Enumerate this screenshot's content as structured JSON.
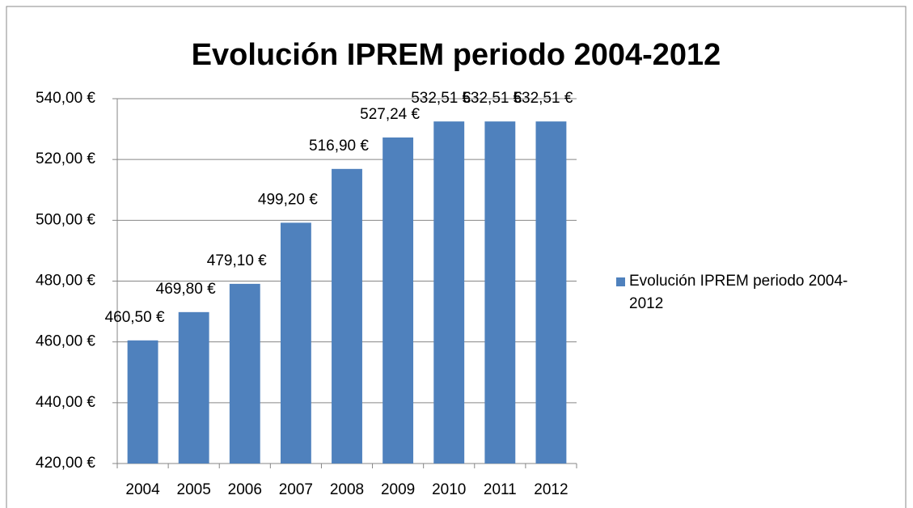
{
  "chart_data": {
    "type": "bar",
    "title": "Evolución IPREM periodo 2004-2012",
    "categories": [
      "2004",
      "2005",
      "2006",
      "2007",
      "2008",
      "2009",
      "2010",
      "2011",
      "2012"
    ],
    "series": [
      {
        "name": "Evolución IPREM periodo 2004-2012",
        "color": "#4f81bd",
        "values": [
          460.5,
          469.8,
          479.1,
          499.2,
          516.9,
          527.24,
          532.51,
          532.51,
          532.51
        ],
        "value_labels": [
          "460,50 €",
          "469,80 €",
          "479,10 €",
          "499,20 €",
          "516,90 €",
          "527,24 €",
          "532,51 €",
          "532,51 €",
          "532,51 €"
        ]
      }
    ],
    "ylim": [
      420,
      540
    ],
    "yticks": [
      {
        "value": 420,
        "label": "420,00 €"
      },
      {
        "value": 440,
        "label": "440,00 €"
      },
      {
        "value": 460,
        "label": "460,00 €"
      },
      {
        "value": 480,
        "label": "480,00 €"
      },
      {
        "value": 500,
        "label": "500,00 €"
      },
      {
        "value": 520,
        "label": "520,00 €"
      },
      {
        "value": 540,
        "label": "540,00 €"
      }
    ],
    "grid": true,
    "legend": "right"
  }
}
